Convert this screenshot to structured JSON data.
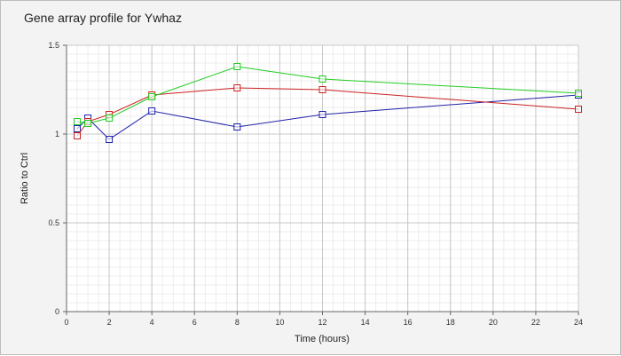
{
  "chart_data": {
    "type": "line",
    "title": "Gene array profile for Ywhaz",
    "xlabel": "Time (hours)",
    "ylabel": "Ratio to Ctrl",
    "xlim": [
      0,
      24
    ],
    "ylim": [
      0,
      1.5
    ],
    "x_ticks": [
      "0",
      "2",
      "4",
      "6",
      "8",
      "10",
      "12",
      "14",
      "16",
      "18",
      "20",
      "22",
      "24"
    ],
    "y_ticks": [
      "0",
      "0.5",
      "1",
      "1.5"
    ],
    "grid": true,
    "legend": "none",
    "marker": "open-square",
    "series": [
      {
        "color": "#2222aa",
        "x": [
          0.5,
          1,
          2,
          4,
          8,
          12,
          24
        ],
        "values": [
          1.03,
          1.09,
          0.97,
          1.13,
          1.04,
          1.11,
          1.22
        ]
      },
      {
        "color": "#cc2222",
        "x": [
          0.5,
          1,
          2,
          4,
          8,
          12,
          24
        ],
        "values": [
          0.99,
          1.07,
          1.11,
          1.22,
          1.26,
          1.25,
          1.14
        ]
      },
      {
        "color": "#22cc22",
        "x": [
          0.5,
          1,
          2,
          4,
          8,
          12,
          24
        ],
        "values": [
          1.07,
          1.06,
          1.09,
          1.21,
          1.38,
          1.31,
          1.23
        ]
      }
    ]
  }
}
